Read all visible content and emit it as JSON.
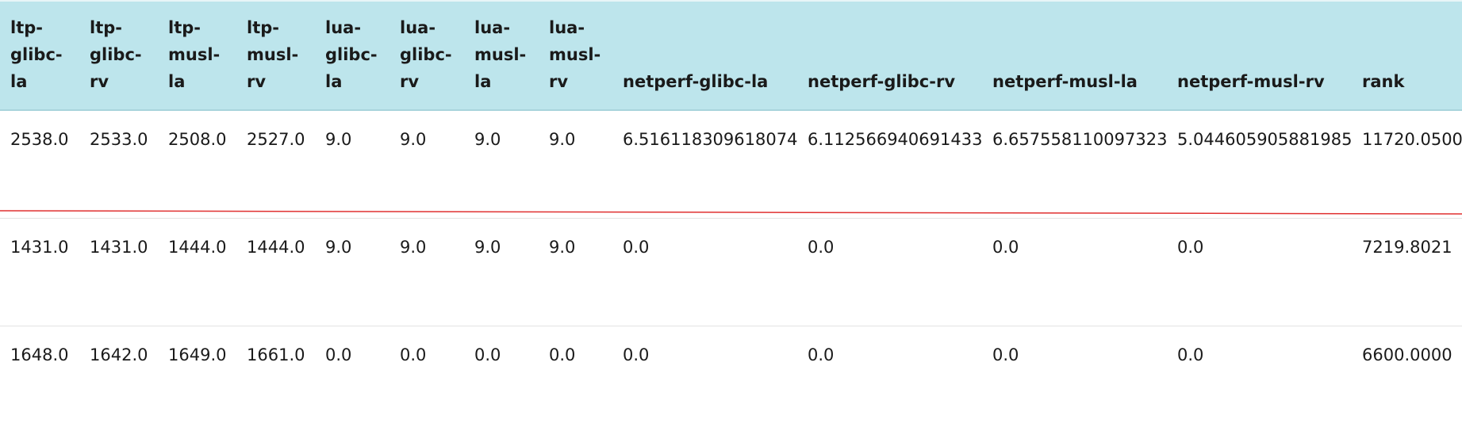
{
  "table": {
    "columns": [
      {
        "key": "ltp_glibc_la",
        "label": "ltp-glibc-la",
        "lines": [
          "ltp-",
          "glibc-",
          "la"
        ]
      },
      {
        "key": "ltp_glibc_rv",
        "label": "ltp-glibc-rv",
        "lines": [
          "ltp-",
          "glibc-",
          "rv"
        ]
      },
      {
        "key": "ltp_musl_la",
        "label": "ltp-musl-la",
        "lines": [
          "ltp-",
          "musl-",
          "la"
        ]
      },
      {
        "key": "ltp_musl_rv",
        "label": "ltp-musl-rv",
        "lines": [
          "ltp-",
          "musl-",
          "rv"
        ]
      },
      {
        "key": "lua_glibc_la",
        "label": "lua-glibc-la",
        "lines": [
          "lua-",
          "glibc-",
          "la"
        ]
      },
      {
        "key": "lua_glibc_rv",
        "label": "lua-glibc-rv",
        "lines": [
          "lua-",
          "glibc-",
          "rv"
        ]
      },
      {
        "key": "lua_musl_la",
        "label": "lua-musl-la",
        "lines": [
          "lua-",
          "musl-",
          "la"
        ]
      },
      {
        "key": "lua_musl_rv",
        "label": "lua-musl-rv",
        "lines": [
          "lua-",
          "musl-",
          "rv"
        ]
      },
      {
        "key": "netperf_glibc_la",
        "label": "netperf-glibc-la"
      },
      {
        "key": "netperf_glibc_rv",
        "label": "netperf-glibc-rv"
      },
      {
        "key": "netperf_musl_la",
        "label": "netperf-musl-la"
      },
      {
        "key": "netperf_musl_rv",
        "label": "netperf-musl-rv"
      },
      {
        "key": "rank",
        "label": "rank"
      }
    ],
    "rows": [
      [
        "2538.0",
        "2533.0",
        "2508.0",
        "2527.0",
        "9.0",
        "9.0",
        "9.0",
        "9.0",
        "6.516118309618074",
        "6.112566940691433",
        "6.657558110097323",
        "5.044605905881985",
        "11720.0500"
      ],
      [
        "1431.0",
        "1431.0",
        "1444.0",
        "1444.0",
        "9.0",
        "9.0",
        "9.0",
        "9.0",
        "0.0",
        "0.0",
        "0.0",
        "0.0",
        "7219.8021"
      ],
      [
        "1648.0",
        "1642.0",
        "1649.0",
        "1661.0",
        "0.0",
        "0.0",
        "0.0",
        "0.0",
        "0.0",
        "0.0",
        "0.0",
        "0.0",
        "6600.0000"
      ]
    ]
  },
  "colors": {
    "header_bg": "#bde5ec",
    "annotation_line": "#e03030"
  }
}
